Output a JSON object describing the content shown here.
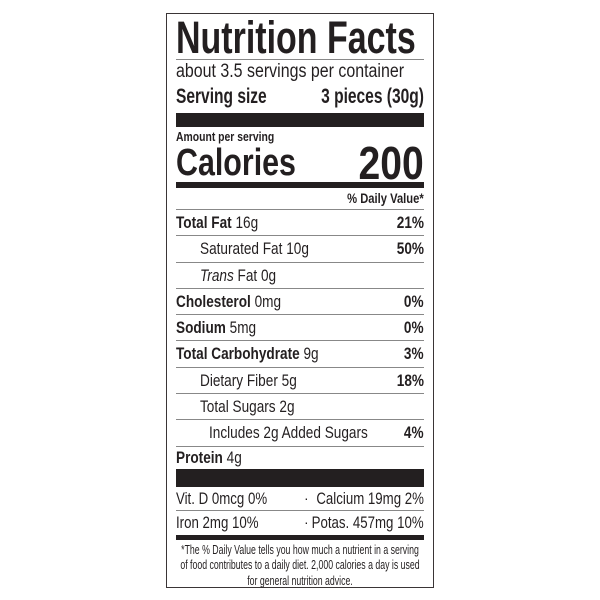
{
  "title": "Nutrition Facts",
  "servings_per_container": "about 3.5 servings per container",
  "serving_size": {
    "label": "Serving size",
    "value": "3 pieces (30g)"
  },
  "amount_per_serving": "Amount per serving",
  "calories": {
    "label": "Calories",
    "value": "200"
  },
  "daily_value_header": "% Daily Value*",
  "nutrients": [
    {
      "name": "Total Fat",
      "amount": "16g",
      "dv": "21%"
    },
    {
      "name": "Saturated Fat",
      "amount": "10g",
      "dv": "50%"
    },
    {
      "name": "Trans",
      "name_suffix": "Fat",
      "amount": "0g",
      "dv": ""
    },
    {
      "name": "Cholesterol",
      "amount": "0mg",
      "dv": "0%"
    },
    {
      "name": "Sodium",
      "amount": "5mg",
      "dv": "0%"
    },
    {
      "name": "Total Carbohydrate",
      "amount": "9g",
      "dv": "3%"
    },
    {
      "name": "Dietary Fiber",
      "amount": "5g",
      "dv": "18%"
    },
    {
      "name": "Total Sugars",
      "amount": "2g",
      "dv": ""
    },
    {
      "name": "Includes 2g Added Sugars",
      "amount": "",
      "dv": "4%"
    },
    {
      "name": "Protein",
      "amount": "4g",
      "dv": ""
    }
  ],
  "micronutrients": [
    {
      "left": "Vit. D 0mcg 0%",
      "right": "Calcium 19mg 2%"
    },
    {
      "left": "Iron 2mg 10%",
      "right": "Potas. 457mg 10%"
    }
  ],
  "separator": "·",
  "footnote": "*The % Daily Value tells you how much a nutrient in a serving of food contributes to a daily diet. 2,000 calories a day is used for general nutrition advice.",
  "colors": {
    "ink": "#231f20",
    "background": "#ffffff"
  }
}
